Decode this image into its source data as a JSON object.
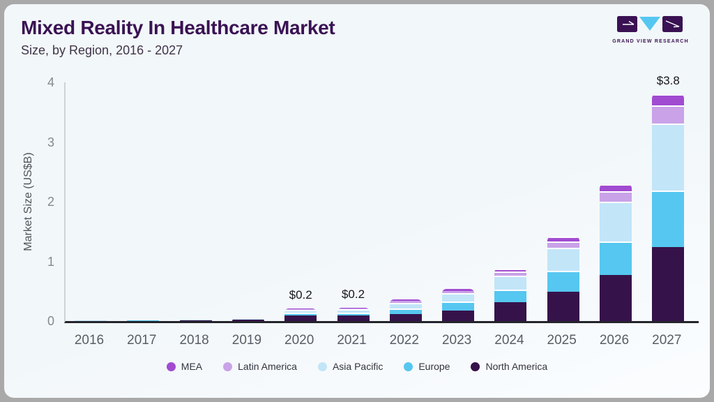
{
  "header": {
    "title": "Mixed Reality In Healthcare Market",
    "subtitle": "Size, by Region, 2016 - 2027",
    "logo_text": "GRAND VIEW RESEARCH"
  },
  "colors": {
    "card_background": "#f3f7f9",
    "frame_border": "#a9a9a9",
    "title_text": "#3a1253",
    "axis_line_x": "#24242b",
    "axis_line_y": "#ccd3d8",
    "mea": "#a14bd1",
    "latin_america": "#c9a2e8",
    "asia_pacific": "#c2e5f8",
    "europe": "#56c7f0",
    "north_america": "#36124a"
  },
  "chart_data": {
    "type": "bar",
    "stacked": true,
    "title": "Mixed Reality In Healthcare Market",
    "subtitle": "Size, by Region, 2016 - 2027",
    "xlabel": "",
    "ylabel": "Market Size (US$B)",
    "ylim": [
      0,
      4
    ],
    "yticks": [
      0,
      1,
      2,
      3,
      4
    ],
    "grid": false,
    "legend_position": "bottom",
    "categories": [
      "2016",
      "2017",
      "2018",
      "2019",
      "2020",
      "2021",
      "2022",
      "2023",
      "2024",
      "2025",
      "2026",
      "2027"
    ],
    "series": [
      {
        "name": "North America",
        "color": "#36124a",
        "values": [
          0.004,
          0.006,
          0.01,
          0.018,
          0.09,
          0.09,
          0.12,
          0.18,
          0.32,
          0.49,
          0.77,
          1.24
        ]
      },
      {
        "name": "Europe",
        "color": "#56c7f0",
        "values": [
          0.002,
          0.003,
          0.005,
          0.007,
          0.05,
          0.05,
          0.09,
          0.15,
          0.21,
          0.35,
          0.56,
          0.95
        ]
      },
      {
        "name": "Asia Pacific",
        "color": "#c2e5f8",
        "values": [
          0.002,
          0.003,
          0.005,
          0.007,
          0.05,
          0.055,
          0.1,
          0.14,
          0.23,
          0.39,
          0.67,
          1.12
        ]
      },
      {
        "name": "Latin America",
        "color": "#c9a2e8",
        "values": [
          0.001,
          0.001,
          0.002,
          0.002,
          0.012,
          0.015,
          0.03,
          0.035,
          0.065,
          0.1,
          0.175,
          0.31
        ]
      },
      {
        "name": "MEA",
        "color": "#a14bd1",
        "values": [
          0.001,
          0.001,
          0.002,
          0.002,
          0.008,
          0.01,
          0.02,
          0.03,
          0.05,
          0.09,
          0.12,
          0.18
        ]
      }
    ],
    "totals_shown": {
      "2020": "$0.2",
      "2021": "$0.2",
      "2027": "$3.8"
    },
    "annotations": [
      {
        "category": "2020",
        "text": "$0.2"
      },
      {
        "category": "2021",
        "text": "$0.2"
      },
      {
        "category": "2027",
        "text": "$3.8"
      }
    ],
    "legend": [
      "MEA",
      "Latin America",
      "Asia Pacific",
      "Europe",
      "North America"
    ]
  }
}
